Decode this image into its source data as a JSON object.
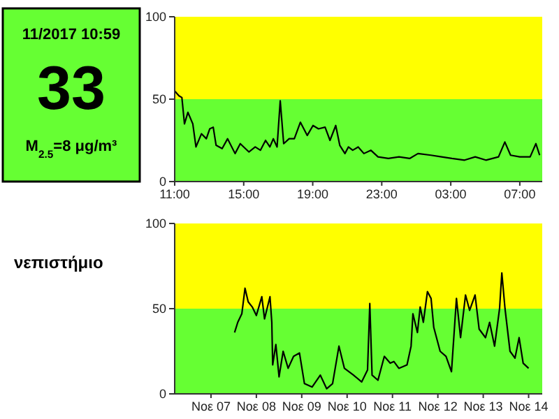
{
  "chart_data": [
    {
      "type": "other",
      "annotations": [
        "11/2017 10:59",
        "33",
        "M$_{2.5}$=8 μg/m³",
        "νεπιστήμιο"
      ]
    },
    {
      "type": "line",
      "x": [
        "2017-11-13T11:00",
        "2017-11-13T11:15",
        "2017-11-13T11:25",
        "2017-11-13T11:34",
        "2017-11-13T11:46",
        "2017-11-13T12:03",
        "2017-11-13T12:14",
        "2017-11-13T12:33",
        "2017-11-13T12:50",
        "2017-11-13T13:02",
        "2017-11-13T13:14",
        "2017-11-13T13:24",
        "2017-11-13T13:45",
        "2017-11-13T14:04",
        "2017-11-13T14:30",
        "2017-11-13T14:48",
        "2017-11-13T15:00",
        "2017-11-13T15:18",
        "2017-11-13T15:40",
        "2017-11-13T15:58",
        "2017-11-13T16:16",
        "2017-11-13T16:31",
        "2017-11-13T16:43",
        "2017-11-13T16:56",
        "2017-11-13T17:07",
        "2017-11-13T17:19",
        "2017-11-13T17:38",
        "2017-11-13T17:56",
        "2017-11-13T18:17",
        "2017-11-13T18:41",
        "2017-11-13T19:01",
        "2017-11-13T19:20",
        "2017-11-13T19:43",
        "2017-11-13T20:00",
        "2017-11-13T20:20",
        "2017-11-13T20:34",
        "2017-11-13T20:52",
        "2017-11-13T21:04",
        "2017-11-13T21:19",
        "2017-11-13T21:38",
        "2017-11-13T21:58",
        "2017-11-13T22:22",
        "2017-11-13T22:47",
        "2017-11-13T23:23",
        "2017-11-14T00:00",
        "2017-11-14T00:37",
        "2017-11-14T01:06",
        "2017-11-14T01:51",
        "2017-11-14T02:28",
        "2017-11-14T03:04",
        "2017-11-14T03:48",
        "2017-11-14T04:25",
        "2017-11-14T05:02",
        "2017-11-14T05:46",
        "2017-11-14T06:08",
        "2017-11-14T06:28",
        "2017-11-14T07:00",
        "2017-11-14T07:36",
        "2017-11-14T07:56",
        "2017-11-14T08:09"
      ],
      "series": [
        {
          "color": "#000000",
          "values": [
            55,
            52,
            51,
            35,
            42,
            35,
            21,
            29,
            26,
            32,
            33,
            22,
            20,
            26,
            17,
            23,
            21,
            18,
            21,
            19,
            25,
            21,
            26,
            21,
            49,
            23,
            26,
            26,
            36,
            28,
            34,
            32,
            33,
            25,
            34,
            22,
            17,
            21,
            19,
            21,
            17,
            19,
            15,
            14,
            15,
            14,
            17,
            16,
            15,
            14,
            13,
            15,
            13,
            15,
            24,
            16,
            15,
            15,
            23,
            16
          ]
        }
      ],
      "xlim": [
        "2017-11-13T11:00",
        "2017-11-14T08:18"
      ],
      "xticks": [
        {
          "value": "2017-11-13T11:00",
          "label": "11:00"
        },
        {
          "value": "2017-11-13T15:00",
          "label": "15:00"
        },
        {
          "value": "2017-11-13T19:00",
          "label": "19:00"
        },
        {
          "value": "2017-11-13T23:00",
          "label": "23:00"
        },
        {
          "value": "2017-11-14T03:00",
          "label": "03:00"
        },
        {
          "value": "2017-11-14T07:00",
          "label": "07:00"
        }
      ],
      "ylim": [
        0,
        100
      ],
      "yticks": [
        0,
        50,
        100
      ],
      "bands": [
        {
          "axis": "y",
          "from": 0,
          "to": 50,
          "color": "#66ff33"
        },
        {
          "axis": "y",
          "from": 50,
          "to": 100,
          "color": "#ffff00"
        }
      ]
    },
    {
      "type": "line",
      "x": [
        "2017-11-07T12:29",
        "2017-11-07T14:10",
        "2017-11-07T16:19",
        "2017-11-07T18:00",
        "2017-11-07T19:41",
        "2017-11-07T21:50",
        "2017-11-08T00:00",
        "2017-11-08T02:53",
        "2017-11-08T04:19",
        "2017-11-08T07:12",
        "2017-11-08T08:10",
        "2017-11-08T08:38",
        "2017-11-08T10:19",
        "2017-11-08T12:00",
        "2017-11-08T14:10",
        "2017-11-08T16:48",
        "2017-11-08T19:41",
        "2017-11-08T22:48",
        "2017-11-09T01:26",
        "2017-11-09T05:31",
        "2017-11-09T09:50",
        "2017-11-09T13:12",
        "2017-11-09T16:19",
        "2017-11-09T19:41",
        "2017-11-09T22:34",
        "2017-11-10T03:22",
        "2017-11-10T07:41",
        "2017-11-10T10:48",
        "2017-11-10T12:00",
        "2017-11-10T13:12",
        "2017-11-10T16:19",
        "2017-11-10T19:41",
        "2017-11-10T22:48",
        "2017-11-11T00:43",
        "2017-11-11T03:22",
        "2017-11-11T07:41",
        "2017-11-11T09:50",
        "2017-11-11T10:48",
        "2017-11-11T13:12",
        "2017-11-11T14:38",
        "2017-11-11T16:19",
        "2017-11-11T18:29",
        "2017-11-11T20:24",
        "2017-11-11T21:50",
        "2017-11-12T01:12",
        "2017-11-12T04:19",
        "2017-11-12T07:12",
        "2017-11-12T09:50",
        "2017-11-12T12:00",
        "2017-11-12T14:38",
        "2017-11-12T16:48",
        "2017-11-12T19:41",
        "2017-11-12T21:50",
        "2017-11-13T01:12",
        "2017-11-13T03:22",
        "2017-11-13T06:00",
        "2017-11-13T08:38",
        "2017-11-13T09:50",
        "2017-11-13T11:31",
        "2017-11-13T14:10",
        "2017-11-13T16:48",
        "2017-11-13T18:58",
        "2017-11-13T21:07",
        "2017-11-14T00:00"
      ],
      "series": [
        {
          "color": "#000000",
          "values": [
            36,
            42,
            47,
            62,
            54,
            51,
            46,
            57,
            44,
            57,
            42,
            17,
            29,
            10,
            25,
            15,
            22,
            24,
            6,
            4,
            11,
            3,
            6,
            28,
            15,
            11,
            7,
            14,
            53,
            11,
            8,
            22,
            18,
            19,
            15,
            17,
            28,
            47,
            36,
            51,
            42,
            60,
            56,
            39,
            25,
            22,
            13,
            56,
            33,
            58,
            49,
            58,
            38,
            33,
            42,
            28,
            50,
            71,
            50,
            25,
            21,
            33,
            18,
            15
          ]
        }
      ],
      "xlim": [
        "2017-11-06T04:48",
        "2017-11-14T07:12"
      ],
      "xticks": [
        {
          "value": "2017-11-07",
          "label": "Νοε 07"
        },
        {
          "value": "2017-11-08",
          "label": "Νοε 08"
        },
        {
          "value": "2017-11-09",
          "label": "Νοε 09"
        },
        {
          "value": "2017-11-10",
          "label": "Νοε 10"
        },
        {
          "value": "2017-11-11",
          "label": "Νοε 11"
        },
        {
          "value": "2017-11-12",
          "label": "Νοε 12"
        },
        {
          "value": "2017-11-13",
          "label": "Νοε 13"
        },
        {
          "value": "2017-11-14",
          "label": "Νοε 14"
        }
      ],
      "ylim": [
        0,
        100
      ],
      "yticks": [
        0,
        50,
        100
      ],
      "bands": [
        {
          "axis": "y",
          "from": 0,
          "to": 50,
          "color": "#66ff33"
        },
        {
          "axis": "y",
          "from": 50,
          "to": 100,
          "color": "#ffff00"
        }
      ]
    }
  ]
}
